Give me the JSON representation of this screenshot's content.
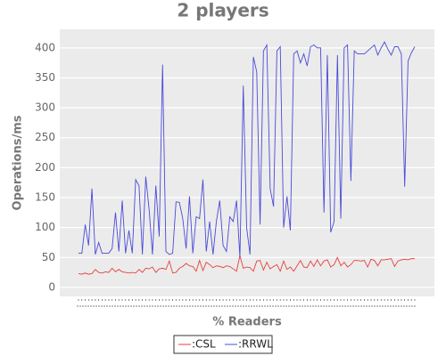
{
  "chart_data": {
    "type": "line",
    "title": "2 players",
    "xlabel": "% Readers",
    "ylabel": "Operations/ms",
    "categories": [
      null,
      null,
      null,
      null,
      null,
      null,
      null,
      null,
      null,
      null,
      null,
      null,
      null,
      null,
      null,
      null,
      null,
      null,
      null,
      null,
      null,
      null,
      null,
      null,
      null,
      null,
      null,
      null,
      null,
      null,
      null,
      null,
      null,
      null,
      null,
      null,
      null,
      null,
      null,
      null,
      null,
      null,
      null,
      null,
      null,
      null,
      null,
      null,
      null,
      null,
      null,
      null,
      null,
      null,
      null,
      null,
      null,
      null,
      null,
      null,
      null,
      null,
      null,
      null,
      null,
      null,
      null,
      null,
      null,
      null,
      null,
      null,
      null,
      null,
      null,
      null,
      null,
      null,
      null,
      null,
      null,
      null,
      null,
      null,
      null,
      null,
      null,
      null,
      null,
      null,
      null,
      null,
      null,
      null,
      null,
      null,
      null,
      null,
      null,
      null,
      null
    ],
    "series": [
      {
        "name": ":CSL",
        "color": "#e8413a",
        "values": [
          23,
          22,
          24,
          22,
          23,
          30,
          25,
          24,
          26,
          25,
          32,
          26,
          30,
          26,
          25,
          24,
          25,
          24,
          30,
          25,
          32,
          31,
          34,
          25,
          31,
          32,
          30,
          44,
          24,
          25,
          32,
          35,
          40,
          36,
          35,
          27,
          45,
          28,
          42,
          38,
          33,
          36,
          35,
          33,
          36,
          35,
          31,
          27,
          53,
          32,
          34,
          33,
          27,
          44,
          45,
          29,
          42,
          31,
          35,
          38,
          27,
          44,
          30,
          34,
          27,
          36,
          45,
          34,
          33,
          44,
          35,
          46,
          36,
          44,
          46,
          34,
          38,
          50,
          36,
          42,
          34,
          38,
          45,
          45,
          44,
          45,
          34,
          47,
          45,
          36,
          46,
          46,
          47,
          48,
          35,
          44,
          46,
          47,
          46,
          48,
          48
        ]
      },
      {
        "name": ":RRWL",
        "color": "#4b4bd8",
        "values": [
          57,
          57,
          105,
          70,
          165,
          55,
          75,
          57,
          57,
          57,
          65,
          125,
          60,
          145,
          57,
          95,
          57,
          180,
          170,
          55,
          185,
          130,
          55,
          170,
          85,
          372,
          60,
          55,
          57,
          143,
          142,
          115,
          65,
          152,
          57,
          118,
          115,
          180,
          60,
          110,
          55,
          110,
          145,
          70,
          60,
          118,
          110,
          145,
          50,
          337,
          100,
          55,
          385,
          360,
          105,
          395,
          405,
          165,
          135,
          395,
          402,
          100,
          152,
          95,
          390,
          395,
          375,
          390,
          370,
          402,
          405,
          400,
          400,
          125,
          388,
          92,
          110,
          388,
          115,
          400,
          405,
          178,
          395,
          390,
          390,
          390,
          395,
          400,
          405,
          388,
          400,
          410,
          398,
          388,
          402,
          402,
          390,
          168,
          378,
          392,
          402
        ]
      }
    ],
    "ylim": [
      -15,
      431
    ],
    "yticks": [
      0,
      50,
      100,
      150,
      200,
      250,
      300,
      350,
      400
    ],
    "grid": true,
    "legend": "bottom"
  }
}
